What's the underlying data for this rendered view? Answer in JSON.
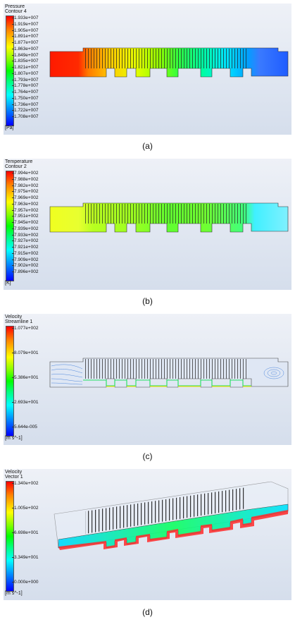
{
  "panels": [
    {
      "title": "Pressure",
      "subtitle": "Contour 4",
      "ticks": [
        "1.933e+007",
        "1.919e+007",
        "1.905e+007",
        "1.891e+007",
        "1.877e+007",
        "1.863e+007",
        "1.849e+007",
        "1.835e+007",
        "1.821e+007",
        "1.807e+007",
        "1.793e+007",
        "1.778e+007",
        "1.764e+007",
        "1.750e+007",
        "1.736e+007",
        "1.722e+007",
        "1.708e+007"
      ],
      "unit": "[Pa]",
      "caption": "(a)"
    },
    {
      "title": "Temperature",
      "subtitle": "Contour 2",
      "ticks": [
        "7.994e+002",
        "7.988e+002",
        "7.982e+002",
        "7.975e+002",
        "7.969e+002",
        "7.963e+002",
        "7.957e+002",
        "7.951e+002",
        "7.945e+002",
        "7.939e+002",
        "7.933e+002",
        "7.927e+002",
        "7.921e+002",
        "7.915e+002",
        "7.909e+002",
        "7.902e+002",
        "7.896e+002"
      ],
      "unit": "[K]",
      "caption": "(b)"
    },
    {
      "title": "Velocity",
      "subtitle": "Streamline 1",
      "ticks": [
        "1.077e+002",
        "8.079e+001",
        "5.386e+001",
        "2.693e+001",
        "5.644e-005"
      ],
      "unit": "[m s^-1]",
      "caption": "(c)"
    },
    {
      "title": "Velocity",
      "subtitle": "Vector 1",
      "ticks": [
        "1.340e+002",
        "1.005e+002",
        "6.698e+001",
        "3.349e+001",
        "0.000e+000"
      ],
      "unit": "[m s^-1]",
      "caption": "(d)"
    }
  ]
}
